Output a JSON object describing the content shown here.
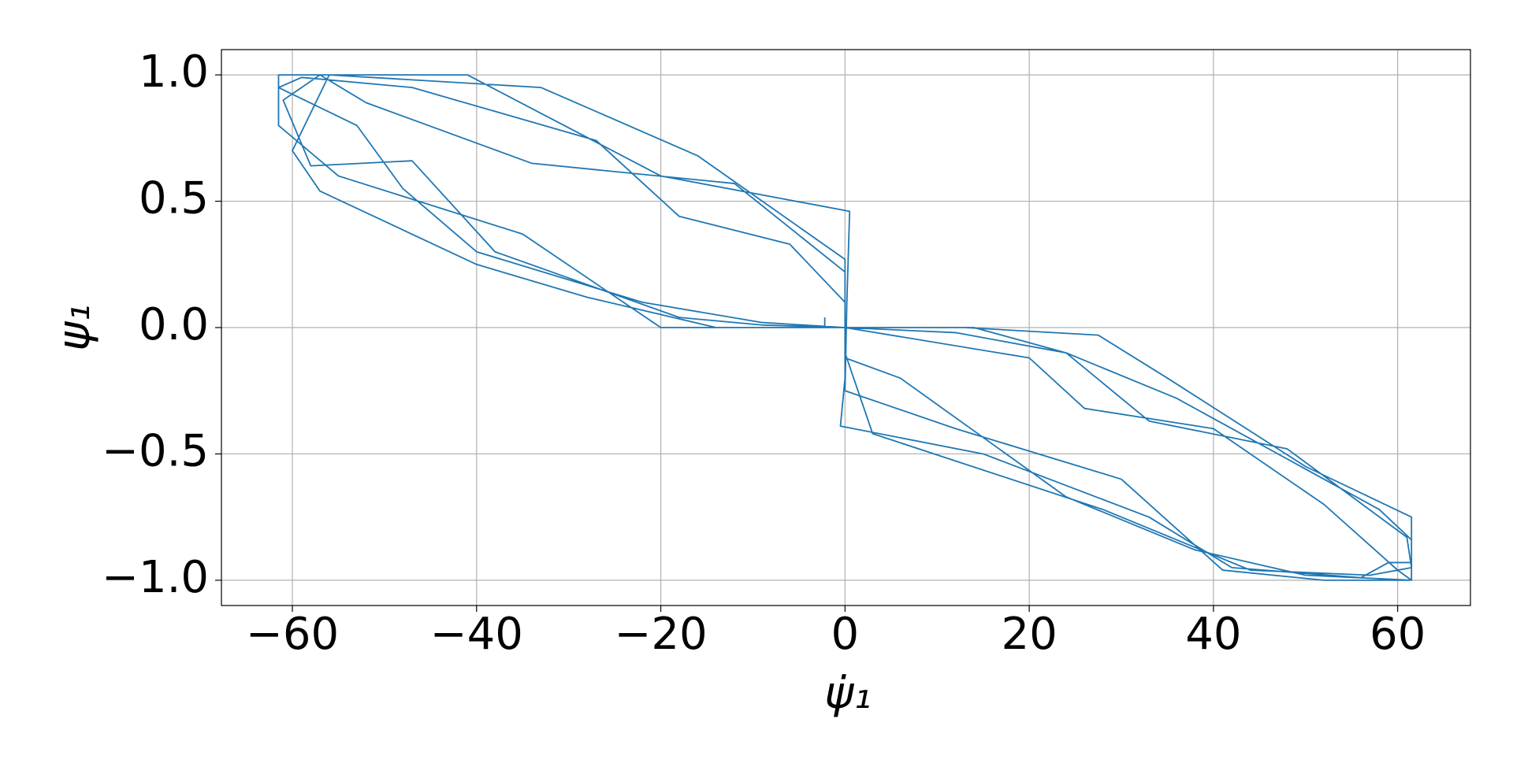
{
  "chart_data": {
    "type": "line",
    "xlabel": "ψ̇₁",
    "ylabel": "ψ₁",
    "color": "#1f77b4",
    "grid": true,
    "xlim": [
      -67.7,
      67.9
    ],
    "ylim": [
      -1.1,
      1.1
    ],
    "xticks": [
      {
        "value": -60,
        "label": "−60"
      },
      {
        "value": -40,
        "label": "−40"
      },
      {
        "value": -20,
        "label": "−20"
      },
      0,
      20,
      40,
      60
    ],
    "yticks": [
      {
        "value": -1.0,
        "label": "−1.0"
      },
      {
        "value": -0.5,
        "label": "−0.5"
      },
      {
        "value": 0.0,
        "label": "0.0"
      },
      0.5,
      {
        "value": 1.0,
        "label": "1.0"
      }
    ],
    "x": [
      -2.2,
      -2.2,
      0,
      13,
      27.5,
      35,
      50,
      61.5,
      61.5,
      52,
      41,
      30,
      12,
      0,
      0.2,
      0.5,
      -20,
      -41,
      -61.5,
      -61.5,
      -55,
      -35,
      -20,
      0,
      14,
      24,
      33,
      48,
      61,
      61.5,
      57,
      44,
      28,
      3,
      0,
      0,
      -16,
      -33,
      -56,
      -60,
      -57,
      -40,
      -28,
      -14,
      0,
      20,
      26,
      40,
      52,
      60,
      61.5,
      50,
      38,
      24,
      6,
      0,
      0,
      -6,
      -18,
      -27,
      -47,
      -59,
      -61.5,
      -53,
      -48,
      -40,
      -22,
      -9,
      0,
      12,
      24,
      36,
      48,
      58,
      61.5,
      61.5,
      59,
      56,
      42,
      33,
      15,
      -0.5,
      0,
      0,
      -12,
      -34,
      -52,
      -57,
      -61,
      -58,
      -47,
      -38,
      -18,
      -9,
      0
    ],
    "values": [
      0.04,
      0,
      0,
      0,
      -0.03,
      -0.2,
      -0.55,
      -0.75,
      -1.0,
      -1.0,
      -0.96,
      -0.6,
      -0.4,
      -0.25,
      0.1,
      0.46,
      0.6,
      1.0,
      1.0,
      0.8,
      0.6,
      0.37,
      0,
      0,
      0,
      -0.1,
      -0.37,
      -0.48,
      -0.83,
      -0.95,
      -0.98,
      -0.96,
      -0.72,
      -0.42,
      -0.1,
      0.27,
      0.68,
      0.95,
      1.0,
      0.7,
      0.54,
      0.25,
      0.12,
      0,
      0,
      -0.12,
      -0.32,
      -0.4,
      -0.7,
      -0.96,
      -1.0,
      -0.98,
      -0.88,
      -0.67,
      -0.2,
      -0.12,
      0.1,
      0.33,
      0.44,
      0.74,
      0.95,
      0.99,
      0.95,
      0.8,
      0.55,
      0.3,
      0.1,
      0.02,
      0,
      -0.02,
      -0.1,
      -0.28,
      -0.52,
      -0.72,
      -0.84,
      -0.93,
      -0.93,
      -0.99,
      -0.95,
      -0.75,
      -0.5,
      -0.39,
      -0.2,
      0.22,
      0.57,
      0.65,
      0.89,
      1.0,
      0.9,
      0.64,
      0.66,
      0.3,
      0.04,
      0.01,
      0
    ]
  }
}
